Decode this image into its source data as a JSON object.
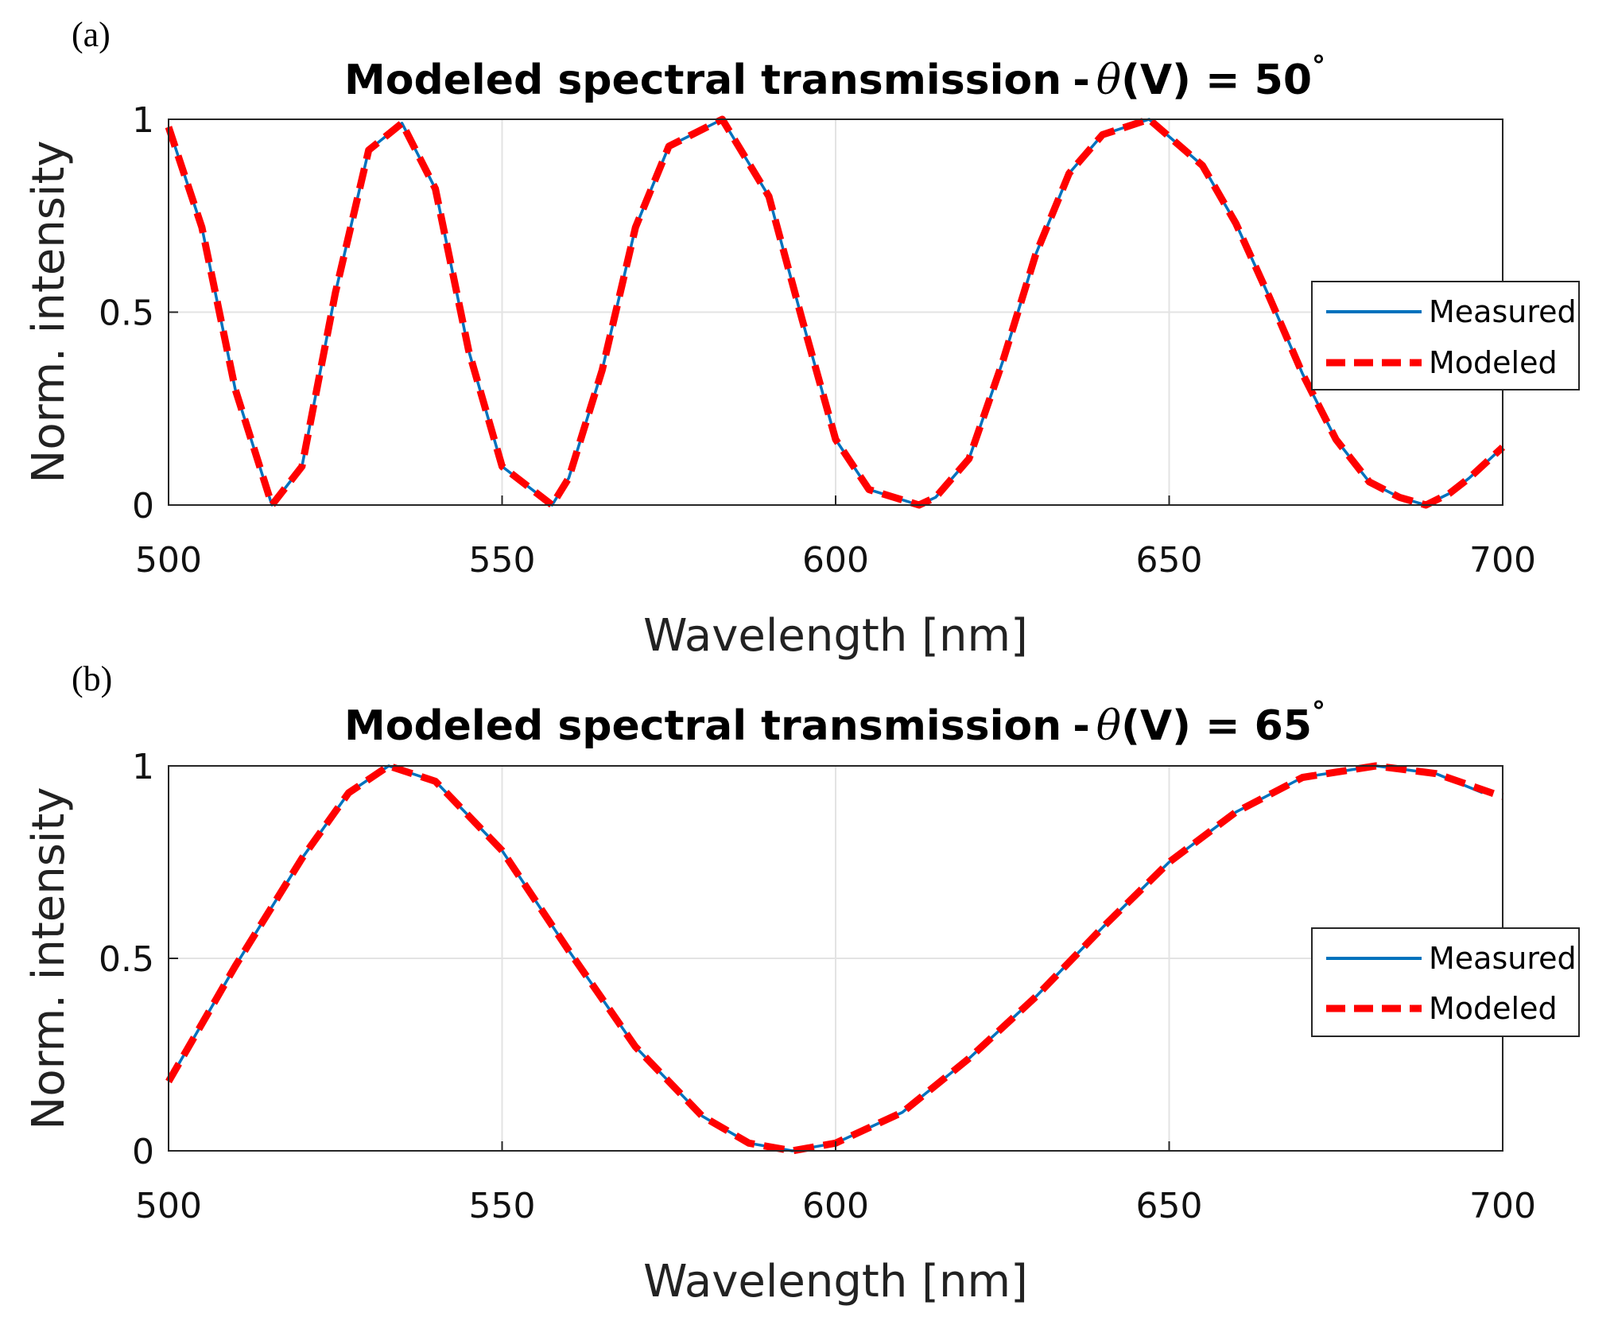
{
  "chart_data": [
    {
      "type": "line",
      "panel_label": "(a)",
      "title": "Modeled spectral transmission - θ(V) = 50°",
      "title_main": "Modeled spectral transmission",
      "title_dash": "-",
      "title_theta": "θ",
      "title_expr": "(V) = 50",
      "title_degree": "°",
      "xlabel": "Wavelength [nm]",
      "ylabel": "Norm. intensity",
      "xlim": [
        500,
        700
      ],
      "ylim": [
        0,
        1
      ],
      "x_ticks": [
        500,
        550,
        600,
        650,
        700
      ],
      "x_tick_labels": [
        "500",
        "550",
        "600",
        "650",
        "700"
      ],
      "y_ticks": [
        0,
        0.5,
        1
      ],
      "y_tick_labels": [
        "0",
        "0.5",
        "1"
      ],
      "grid": true,
      "legend_position": "right",
      "series": [
        {
          "name": "Measured",
          "color": "#0072BD",
          "style": "solid",
          "x": [
            500,
            505,
            510,
            515.5,
            520,
            525,
            530,
            535,
            540,
            545,
            550,
            557.5,
            560,
            565,
            570,
            575,
            583,
            590,
            595,
            600,
            605,
            612.5,
            615,
            620,
            625,
            630,
            635,
            640,
            647,
            655,
            660,
            665,
            670,
            675,
            680,
            684.5,
            688.5,
            692,
            695,
            700
          ],
          "values": [
            0.98,
            0.72,
            0.3,
            0.0,
            0.1,
            0.55,
            0.92,
            0.99,
            0.82,
            0.4,
            0.1,
            0.0,
            0.07,
            0.35,
            0.72,
            0.93,
            1.0,
            0.8,
            0.48,
            0.17,
            0.04,
            0.0,
            0.02,
            0.12,
            0.37,
            0.65,
            0.86,
            0.96,
            1.0,
            0.88,
            0.73,
            0.54,
            0.34,
            0.17,
            0.06,
            0.02,
            0.0,
            0.03,
            0.07,
            0.15
          ]
        },
        {
          "name": "Modeled",
          "color": "#FF0000",
          "style": "dashed",
          "x": [
            500,
            505,
            510,
            515.5,
            520,
            525,
            530,
            535,
            540,
            545,
            550,
            557.5,
            560,
            565,
            570,
            575,
            583,
            590,
            595,
            600,
            605,
            612.5,
            615,
            620,
            625,
            630,
            635,
            640,
            647,
            655,
            660,
            665,
            670,
            675,
            680,
            684.5,
            688.5,
            692,
            695,
            700
          ],
          "values": [
            0.98,
            0.72,
            0.3,
            0.0,
            0.1,
            0.55,
            0.92,
            0.99,
            0.82,
            0.4,
            0.1,
            0.0,
            0.07,
            0.35,
            0.72,
            0.93,
            1.0,
            0.8,
            0.48,
            0.17,
            0.04,
            0.0,
            0.02,
            0.12,
            0.37,
            0.65,
            0.86,
            0.96,
            1.0,
            0.88,
            0.73,
            0.54,
            0.34,
            0.17,
            0.06,
            0.02,
            0.0,
            0.03,
            0.07,
            0.15
          ]
        }
      ]
    },
    {
      "type": "line",
      "panel_label": "(b)",
      "title": "Modeled spectral transmission - θ(V) = 65°",
      "title_main": "Modeled spectral transmission",
      "title_dash": "-",
      "title_theta": "θ",
      "title_expr": "(V) = 65",
      "title_degree": "°",
      "xlabel": "Wavelength [nm]",
      "ylabel": "Norm. intensity",
      "xlim": [
        500,
        700
      ],
      "ylim": [
        0,
        1
      ],
      "x_ticks": [
        500,
        550,
        600,
        650,
        700
      ],
      "x_tick_labels": [
        "500",
        "550",
        "600",
        "650",
        "700"
      ],
      "y_ticks": [
        0,
        0.5,
        1
      ],
      "y_tick_labels": [
        "0",
        "0.5",
        "1"
      ],
      "grid": true,
      "legend_position": "right",
      "series": [
        {
          "name": "Measured",
          "color": "#0072BD",
          "style": "solid",
          "x": [
            500,
            510,
            520,
            527,
            533,
            540,
            550,
            560,
            570,
            580,
            587,
            593.5,
            600,
            610,
            620,
            630,
            640,
            650,
            660,
            670,
            681,
            690,
            697
          ],
          "values": [
            0.18,
            0.48,
            0.76,
            0.93,
            1.0,
            0.96,
            0.78,
            0.52,
            0.27,
            0.09,
            0.02,
            0.0,
            0.02,
            0.1,
            0.24,
            0.4,
            0.58,
            0.75,
            0.88,
            0.97,
            1.0,
            0.98,
            0.93
          ]
        },
        {
          "name": "Modeled",
          "color": "#FF0000",
          "style": "dashed",
          "x": [
            500,
            510,
            520,
            527,
            533,
            540,
            550,
            560,
            570,
            580,
            587,
            593.5,
            600,
            610,
            620,
            630,
            640,
            650,
            660,
            670,
            681,
            690,
            700
          ],
          "values": [
            0.18,
            0.48,
            0.76,
            0.93,
            1.0,
            0.96,
            0.78,
            0.52,
            0.27,
            0.09,
            0.02,
            0.0,
            0.02,
            0.1,
            0.24,
            0.4,
            0.58,
            0.75,
            0.88,
            0.97,
            1.0,
            0.98,
            0.92
          ]
        }
      ]
    }
  ]
}
